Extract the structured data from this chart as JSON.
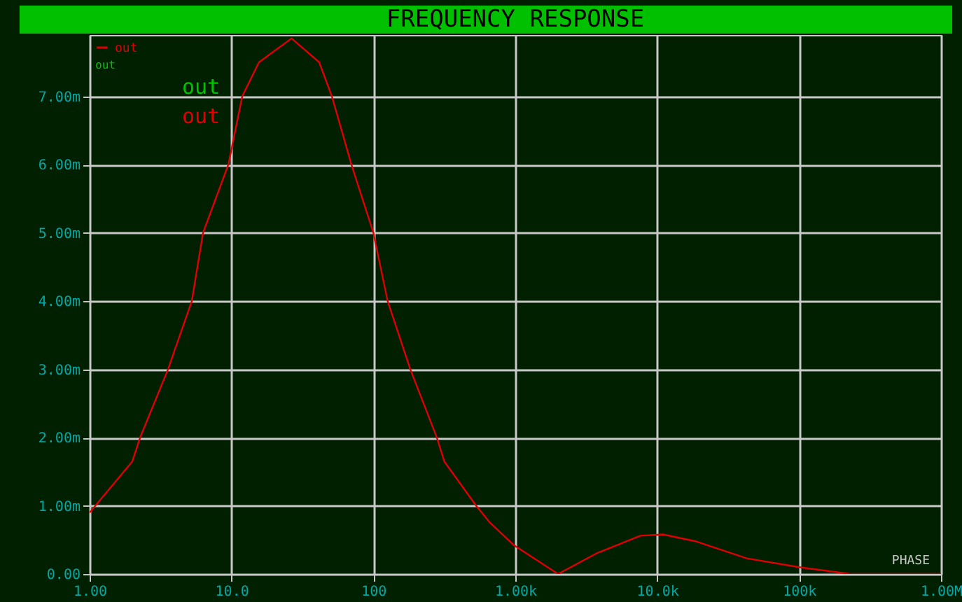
{
  "chart_data": {
    "type": "line",
    "title": "FREQUENCY RESPONSE",
    "x": [
      1,
      2.0,
      2.27,
      3.57,
      5.25,
      6.3,
      9.5,
      11.9,
      15.6,
      26.5,
      41.5,
      51,
      70,
      100,
      126,
      182,
      280,
      316,
      530,
      665,
      980,
      2000,
      3800,
      7600,
      11000,
      18600,
      42700,
      100000,
      230000,
      1000000
    ],
    "series": [
      {
        "name": "out",
        "color": "#e00000",
        "values": [
          0.9,
          1.65,
          2,
          3,
          4,
          5,
          6,
          7,
          7.5,
          7.85,
          7.5,
          7,
          6,
          5,
          4,
          3,
          2,
          1.65,
          1,
          0.75,
          0.42,
          0,
          0.31,
          0.56,
          0.58,
          0.48,
          0.23,
          0.1,
          0,
          0
        ]
      }
    ],
    "xlim": [
      1,
      1000000
    ],
    "ylim": [
      0,
      7.9
    ],
    "xticks": [
      {
        "value": 1,
        "label": "1.00"
      },
      {
        "value": 10,
        "label": "10.0"
      },
      {
        "value": 100,
        "label": "100"
      },
      {
        "value": 1000,
        "label": "1.00k"
      },
      {
        "value": 10000,
        "label": "10.0k"
      },
      {
        "value": 100000,
        "label": "100k"
      },
      {
        "value": 1000000,
        "label": "1.00M"
      }
    ],
    "yticks": [
      {
        "value": 0,
        "label": "0.00"
      },
      {
        "value": 1,
        "label": "1.00m"
      },
      {
        "value": 2,
        "label": "2.00m"
      },
      {
        "value": 3,
        "label": "3.00m"
      },
      {
        "value": 4,
        "label": "4.00m"
      },
      {
        "value": 5,
        "label": "5.00m"
      },
      {
        "value": 6,
        "label": "6.00m"
      },
      {
        "value": 7,
        "label": "7.00m"
      }
    ],
    "log": "x",
    "grid": true,
    "legend": "top left",
    "line_style": "solid",
    "marker": "none",
    "annotations": [
      "out",
      "out",
      "out",
      "PHASE"
    ]
  }
}
